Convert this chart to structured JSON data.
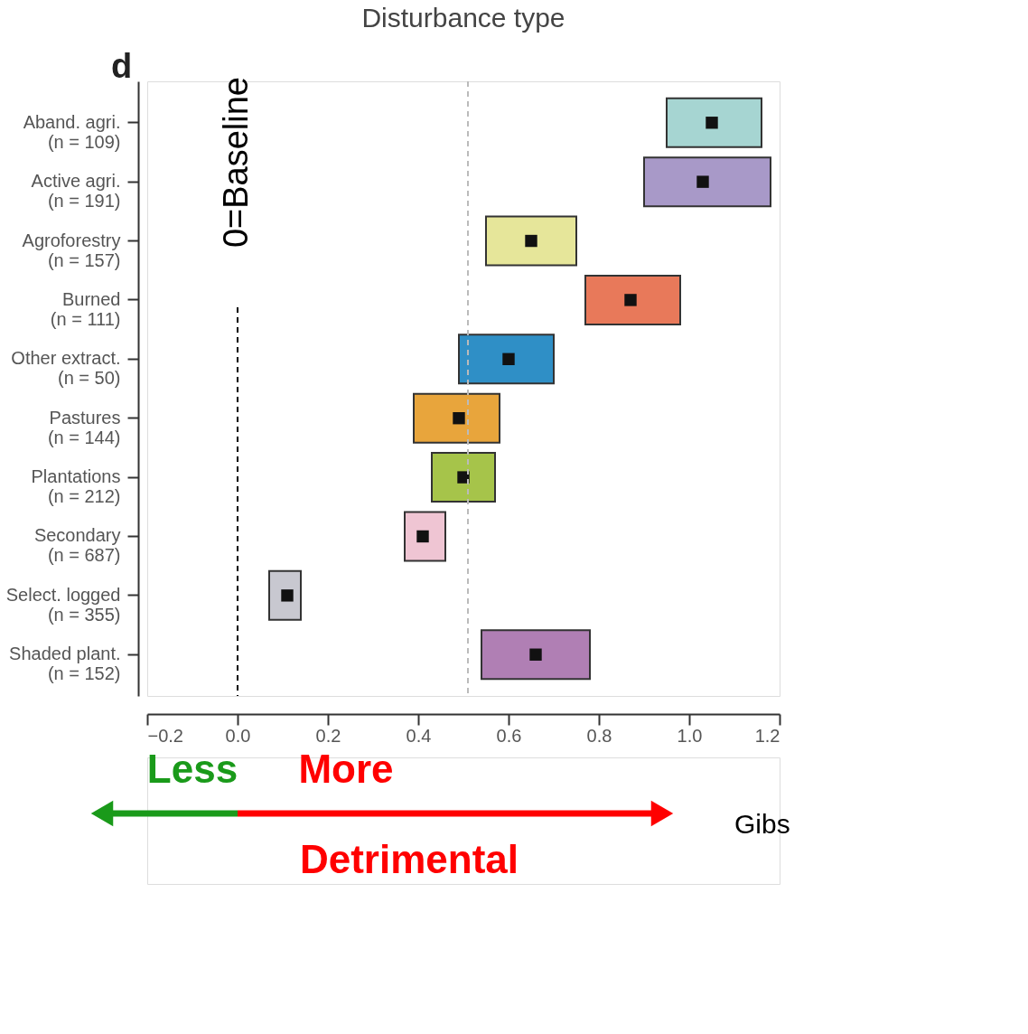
{
  "chart_data": {
    "type": "bar",
    "orientation": "horizontal",
    "title": "Disturbance type",
    "categories": [
      "Aband. agri.\n(n = 109)",
      "Active agri.\n(n = 191)",
      "Agroforestry\n(n = 157)",
      "Burned\n(n = 111)",
      "Other extract.\n(n = 50)",
      "Pastures\n(n = 144)",
      "Plantations\n(n = 212)",
      "Secondary\n(n = 687)",
      "Select. logged\n(n = 355)",
      "Shaded plant.\n(n = 152)"
    ],
    "series": [
      {
        "base": [
          0.95,
          0.9,
          0.55,
          0.77,
          0.49,
          0.39,
          0.43,
          0.37,
          0.07,
          0.54
        ],
        "values": [
          0.21,
          0.28,
          0.2,
          0.21,
          0.21,
          0.19,
          0.14,
          0.09,
          0.07,
          0.24
        ],
        "colors": [
          "#a6d5d2",
          "#a899c8",
          "#e6e69a",
          "#e8795a",
          "#2f8fc6",
          "#e8a53c",
          "#a6c44a",
          "#efc5d3",
          "#c8c8d0",
          "#b07fb4"
        ]
      },
      {
        "type": "scatter",
        "x": [
          "Aband. agri.\n(n = 109)",
          "Active agri.\n(n = 191)",
          "Agroforestry\n(n = 157)",
          "Burned\n(n = 111)",
          "Other extract.\n(n = 50)",
          "Pastures\n(n = 144)",
          "Plantations\n(n = 212)",
          "Secondary\n(n = 687)",
          "Select. logged\n(n = 355)",
          "Shaded plant.\n(n = 152)"
        ],
        "values": [
          1.05,
          1.03,
          0.65,
          0.87,
          0.6,
          0.49,
          0.5,
          0.41,
          0.11,
          0.66
        ],
        "color": "#111111",
        "marker": "square"
      }
    ],
    "xlim": [
      -0.2,
      1.2
    ],
    "xticks": [
      {
        "value": -0.2,
        "label": "−0.2"
      },
      {
        "value": 0,
        "label": "0.0"
      },
      {
        "value": 0.2,
        "label": "0.2"
      },
      {
        "value": 0.4,
        "label": "0.4"
      },
      {
        "value": 0.6,
        "label": "0.6"
      },
      {
        "value": 0.8,
        "label": "0.8"
      },
      {
        "value": 1,
        "label": "1.0"
      },
      {
        "value": 1.2,
        "label": "1.2"
      }
    ],
    "ref_lines": [
      {
        "axis": "x",
        "value": 0,
        "label": "0=Baseline",
        "color": "#000000",
        "line_style": "dashed"
      },
      {
        "axis": "x",
        "value": 0.51,
        "label": null,
        "color": "#bbbbbb",
        "line_style": "dashed"
      }
    ],
    "annotations": [
      "d",
      "Less",
      "More",
      "Detrimental",
      "Gibs"
    ],
    "grid": false
  }
}
